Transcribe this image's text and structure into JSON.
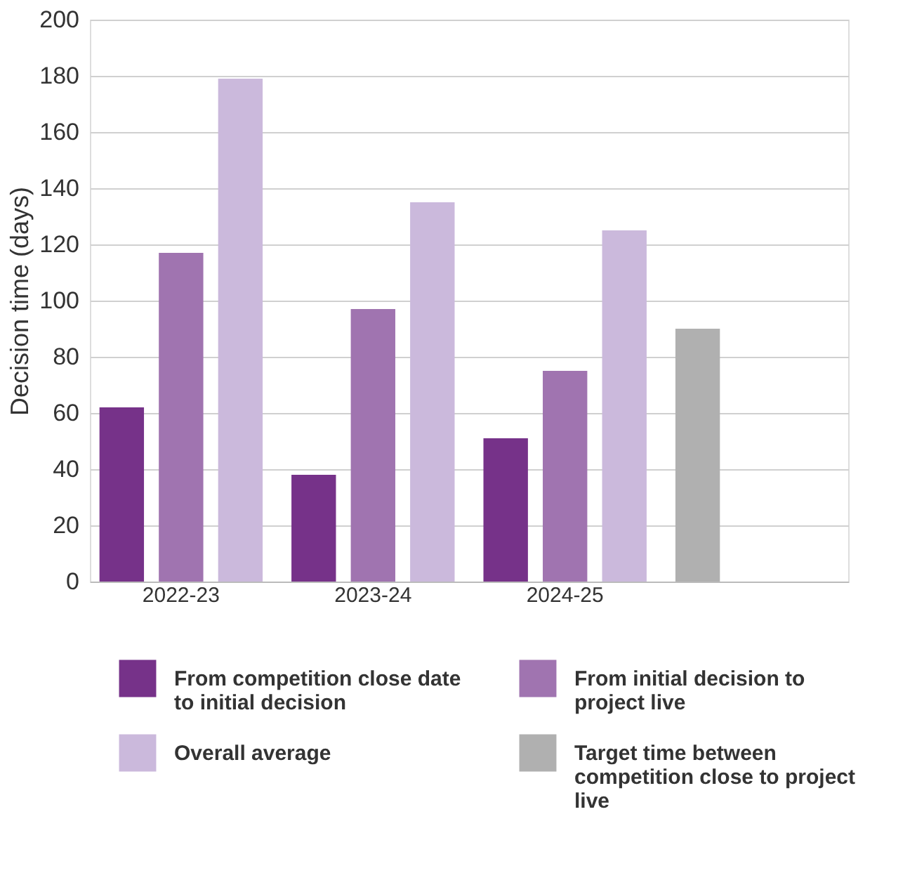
{
  "chart_data": {
    "type": "bar",
    "ylabel": "Decision time (days)",
    "categories": [
      "2022-23",
      "2023-24",
      "2024-25",
      null
    ],
    "series": [
      {
        "name": "From competition close date to initial decision",
        "color": "#763289",
        "values": [
          62,
          38,
          51,
          null
        ]
      },
      {
        "name": "From initial decision to project live",
        "color": "#a074b0",
        "values": [
          117,
          97,
          75,
          null
        ]
      },
      {
        "name": "Overall average",
        "color": "#cbb9dc",
        "values": [
          179,
          135,
          125,
          null
        ]
      },
      {
        "name": "Target time between competition close to project live",
        "color": "#b0b0b0",
        "values": [
          null,
          null,
          null,
          90
        ]
      }
    ],
    "ylim": [
      0,
      200
    ],
    "yticks": [
      0,
      20,
      40,
      60,
      80,
      100,
      120,
      140,
      160,
      180,
      200
    ],
    "grid": "y",
    "legend": "bottom"
  }
}
